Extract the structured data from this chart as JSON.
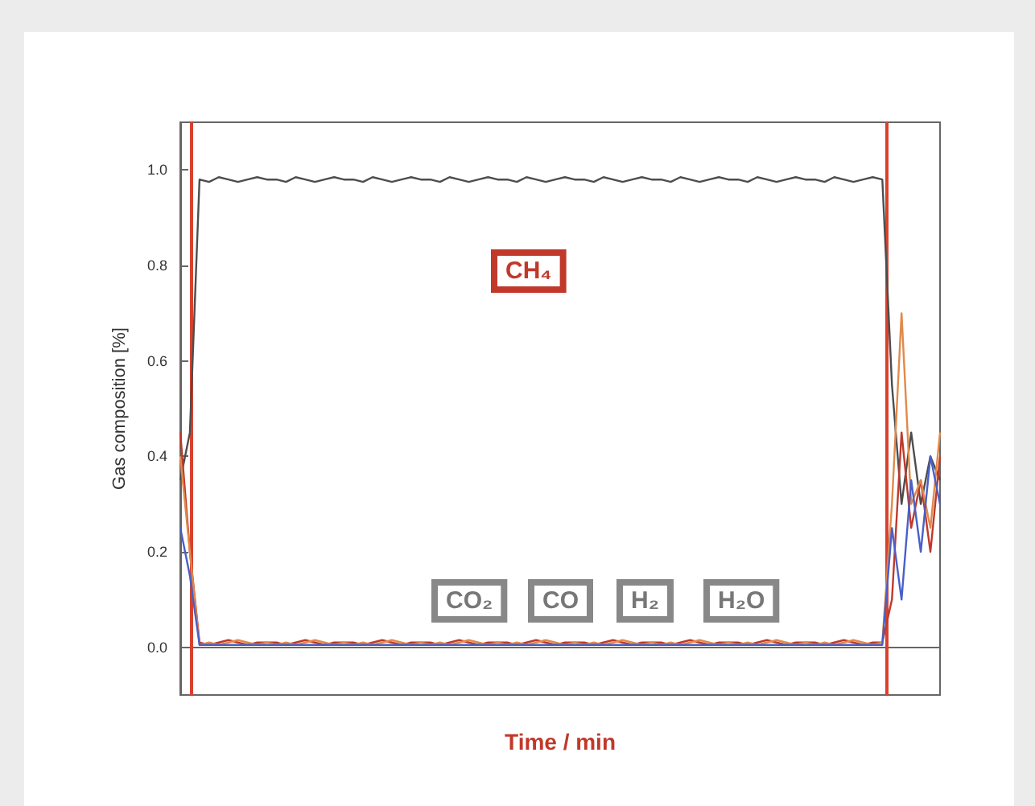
{
  "chart_data": {
    "type": "line",
    "xlabel": "Time / min",
    "ylabel": "Gas composition [%]",
    "categories": [
      null,
      null,
      null,
      null,
      null,
      null,
      null,
      null,
      null,
      null,
      null,
      null,
      null,
      null,
      null,
      null,
      null,
      null,
      null,
      null,
      null,
      null,
      null,
      null,
      null,
      null,
      null,
      null,
      null,
      null,
      null,
      null,
      null,
      null,
      null,
      null,
      null,
      null,
      null,
      null,
      null,
      null,
      null,
      null,
      null,
      null,
      null,
      null,
      null,
      null,
      null,
      null,
      null,
      null,
      null,
      null,
      null,
      null,
      null,
      null,
      null,
      null,
      null,
      null,
      null,
      null,
      null,
      null,
      null,
      null,
      null,
      null,
      null,
      null,
      null,
      null,
      null,
      null,
      null,
      null
    ],
    "ylim": [
      -0.1,
      1.1
    ],
    "yticks": [
      {
        "value": 0,
        "label": "0.0"
      },
      {
        "value": 0.2,
        "label": "0.2"
      },
      {
        "value": 0.4,
        "label": "0.4"
      },
      {
        "value": 0.6,
        "label": "0.6"
      },
      {
        "value": 0.8,
        "label": "0.8"
      },
      {
        "value": 1,
        "label": "1.0"
      }
    ],
    "tick_labels": "y",
    "series": [
      {
        "color": "#4d4d4d",
        "values": [
          0.35,
          0.45,
          0.98,
          0.975,
          0.985,
          0.98,
          0.975,
          0.98,
          0.985,
          0.98,
          0.98,
          0.975,
          0.985,
          0.98,
          0.975,
          0.98,
          0.985,
          0.98,
          0.98,
          0.975,
          0.985,
          0.98,
          0.975,
          0.98,
          0.985,
          0.98,
          0.98,
          0.975,
          0.985,
          0.98,
          0.975,
          0.98,
          0.985,
          0.98,
          0.98,
          0.975,
          0.985,
          0.98,
          0.975,
          0.98,
          0.985,
          0.98,
          0.98,
          0.975,
          0.985,
          0.98,
          0.975,
          0.98,
          0.985,
          0.98,
          0.98,
          0.975,
          0.985,
          0.98,
          0.975,
          0.98,
          0.985,
          0.98,
          0.98,
          0.975,
          0.985,
          0.98,
          0.975,
          0.98,
          0.985,
          0.98,
          0.98,
          0.975,
          0.985,
          0.98,
          0.975,
          0.98,
          0.985,
          0.98,
          0.55,
          0.3,
          0.45,
          0.3,
          0.4,
          0.35
        ]
      },
      {
        "color": "#c0392b",
        "values": [
          0.45,
          0.2,
          0.01,
          0.005,
          0.01,
          0.015,
          0.01,
          0.005,
          0.01,
          0.01,
          0.01,
          0.005,
          0.01,
          0.015,
          0.01,
          0.005,
          0.01,
          0.01,
          0.01,
          0.005,
          0.01,
          0.015,
          0.01,
          0.005,
          0.01,
          0.01,
          0.01,
          0.005,
          0.01,
          0.015,
          0.01,
          0.005,
          0.01,
          0.01,
          0.01,
          0.005,
          0.01,
          0.015,
          0.01,
          0.005,
          0.01,
          0.01,
          0.01,
          0.005,
          0.01,
          0.015,
          0.01,
          0.005,
          0.01,
          0.01,
          0.01,
          0.005,
          0.01,
          0.015,
          0.01,
          0.005,
          0.01,
          0.01,
          0.01,
          0.005,
          0.01,
          0.015,
          0.01,
          0.005,
          0.01,
          0.01,
          0.01,
          0.005,
          0.01,
          0.015,
          0.01,
          0.005,
          0.01,
          0.01,
          0.1,
          0.45,
          0.25,
          0.35,
          0.2,
          0.4
        ]
      },
      {
        "color": "#e08a4a",
        "values": [
          0.4,
          0.2,
          0.005,
          0.01,
          0.005,
          0.01,
          0.015,
          0.01,
          0.005,
          0.01,
          0.005,
          0.01,
          0.005,
          0.01,
          0.015,
          0.01,
          0.005,
          0.01,
          0.005,
          0.01,
          0.005,
          0.01,
          0.015,
          0.01,
          0.005,
          0.01,
          0.005,
          0.01,
          0.005,
          0.01,
          0.015,
          0.01,
          0.005,
          0.01,
          0.005,
          0.01,
          0.005,
          0.01,
          0.015,
          0.01,
          0.005,
          0.01,
          0.005,
          0.01,
          0.005,
          0.01,
          0.015,
          0.01,
          0.005,
          0.01,
          0.005,
          0.01,
          0.005,
          0.01,
          0.015,
          0.01,
          0.005,
          0.01,
          0.005,
          0.01,
          0.005,
          0.01,
          0.015,
          0.01,
          0.005,
          0.01,
          0.005,
          0.01,
          0.005,
          0.01,
          0.015,
          0.01,
          0.005,
          0.01,
          0.3,
          0.7,
          0.3,
          0.35,
          0.25,
          0.45
        ]
      },
      {
        "color": "#4a5fc8",
        "values": [
          0.25,
          0.15,
          0.005,
          0.005,
          0.005,
          0.005,
          0.005,
          0.005,
          0.005,
          0.005,
          0.005,
          0.005,
          0.005,
          0.005,
          0.005,
          0.005,
          0.005,
          0.005,
          0.005,
          0.005,
          0.005,
          0.005,
          0.005,
          0.005,
          0.005,
          0.005,
          0.005,
          0.005,
          0.005,
          0.005,
          0.005,
          0.005,
          0.005,
          0.005,
          0.005,
          0.005,
          0.005,
          0.005,
          0.005,
          0.005,
          0.005,
          0.005,
          0.005,
          0.005,
          0.005,
          0.005,
          0.005,
          0.005,
          0.005,
          0.005,
          0.005,
          0.005,
          0.005,
          0.005,
          0.005,
          0.005,
          0.005,
          0.005,
          0.005,
          0.005,
          0.005,
          0.005,
          0.005,
          0.005,
          0.005,
          0.005,
          0.005,
          0.005,
          0.005,
          0.005,
          0.005,
          0.005,
          0.005,
          0.005,
          0.25,
          0.1,
          0.35,
          0.2,
          0.4,
          0.3
        ]
      }
    ],
    "annotations": [
      "CH₄",
      "CO₂",
      "CO",
      "H₂",
      "H₂O"
    ]
  }
}
